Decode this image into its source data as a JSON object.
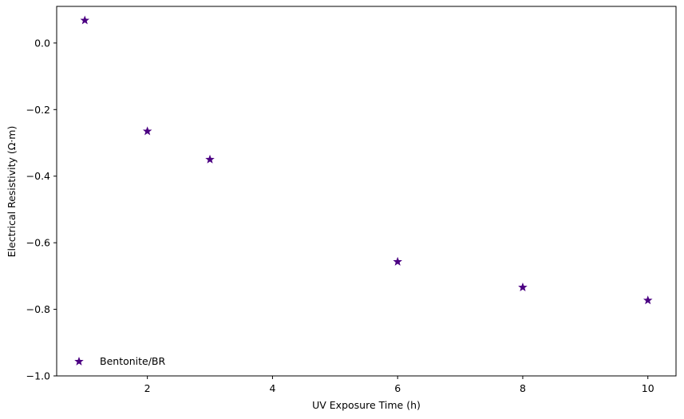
{
  "chart_data": {
    "type": "scatter",
    "title": "",
    "xlabel": "UV Exposure Time (h)",
    "ylabel": "Electrical Resistivity (Ω·m)",
    "xlim": [
      0.55,
      10.45
    ],
    "ylim": [
      -1.0,
      0.11
    ],
    "xticks": [
      2,
      4,
      6,
      8,
      10
    ],
    "xtick_labels": [
      "2",
      "4",
      "6",
      "8",
      "10"
    ],
    "yticks": [
      -1.0,
      -0.8,
      -0.6,
      -0.4,
      -0.2,
      0.0
    ],
    "ytick_labels": [
      "−1.0",
      "−0.8",
      "−0.6",
      "−0.4",
      "−0.2",
      "0.0"
    ],
    "grid": false,
    "legend_position": "lower-left",
    "series": [
      {
        "name": "Bentonite/BR",
        "marker": "star",
        "color": "#4b0082",
        "x": [
          1,
          2,
          3,
          6,
          8,
          10
        ],
        "y": [
          0.068,
          -0.265,
          -0.35,
          -0.657,
          -0.734,
          -0.773
        ]
      }
    ]
  }
}
